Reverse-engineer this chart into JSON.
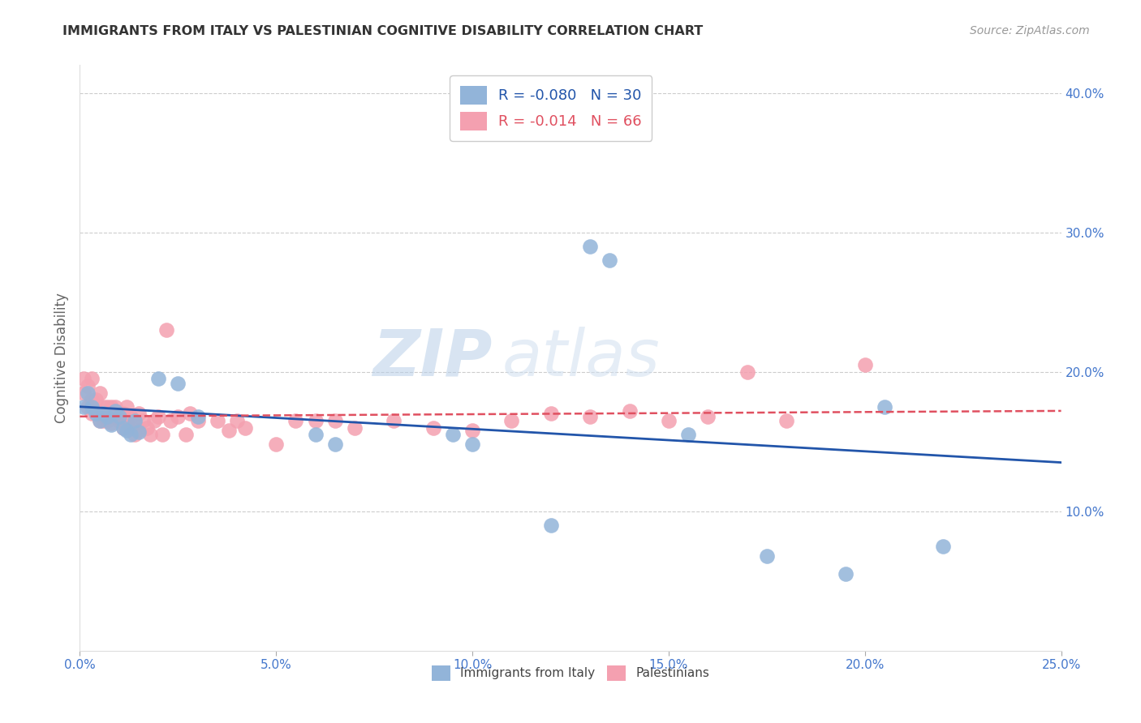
{
  "title": "IMMIGRANTS FROM ITALY VS PALESTINIAN COGNITIVE DISABILITY CORRELATION CHART",
  "source": "Source: ZipAtlas.com",
  "ylabel": "Cognitive Disability",
  "watermark_zip": "ZIP",
  "watermark_atlas": "atlas",
  "xlim": [
    0.0,
    0.25
  ],
  "ylim": [
    0.0,
    0.42
  ],
  "xticks": [
    0.0,
    0.05,
    0.1,
    0.15,
    0.2,
    0.25
  ],
  "yticks_right": [
    0.1,
    0.2,
    0.3,
    0.4
  ],
  "ytick_labels_right": [
    "10.0%",
    "20.0%",
    "30.0%",
    "40.0%"
  ],
  "xtick_labels": [
    "0.0%",
    "5.0%",
    "10.0%",
    "15.0%",
    "20.0%",
    "25.0%"
  ],
  "italy_R": -0.08,
  "italy_N": 30,
  "palestine_R": -0.014,
  "palestine_N": 66,
  "italy_color": "#92b4d9",
  "palestine_color": "#f4a0b0",
  "italy_line_color": "#2255aa",
  "palestine_line_color": "#e05060",
  "background_color": "#ffffff",
  "grid_color": "#cccccc",
  "axis_label_color": "#4477cc",
  "title_color": "#333333",
  "italy_scatter_x": [
    0.001,
    0.002,
    0.003,
    0.004,
    0.005,
    0.006,
    0.007,
    0.008,
    0.009,
    0.01,
    0.011,
    0.012,
    0.013,
    0.014,
    0.015,
    0.02,
    0.025,
    0.03,
    0.06,
    0.065,
    0.095,
    0.1,
    0.12,
    0.13,
    0.135,
    0.155,
    0.175,
    0.195,
    0.205,
    0.22
  ],
  "italy_scatter_y": [
    0.175,
    0.185,
    0.175,
    0.17,
    0.165,
    0.17,
    0.168,
    0.162,
    0.172,
    0.168,
    0.16,
    0.158,
    0.155,
    0.165,
    0.157,
    0.195,
    0.192,
    0.168,
    0.155,
    0.148,
    0.155,
    0.148,
    0.09,
    0.29,
    0.28,
    0.155,
    0.068,
    0.055,
    0.175,
    0.075
  ],
  "palestine_scatter_x": [
    0.001,
    0.001,
    0.002,
    0.002,
    0.003,
    0.003,
    0.003,
    0.004,
    0.004,
    0.005,
    0.005,
    0.005,
    0.006,
    0.006,
    0.007,
    0.007,
    0.007,
    0.008,
    0.008,
    0.009,
    0.009,
    0.01,
    0.01,
    0.011,
    0.011,
    0.012,
    0.012,
    0.013,
    0.013,
    0.014,
    0.014,
    0.015,
    0.015,
    0.016,
    0.017,
    0.018,
    0.019,
    0.02,
    0.021,
    0.022,
    0.023,
    0.025,
    0.027,
    0.028,
    0.03,
    0.035,
    0.038,
    0.04,
    0.042,
    0.05,
    0.055,
    0.06,
    0.065,
    0.07,
    0.08,
    0.09,
    0.1,
    0.11,
    0.12,
    0.13,
    0.14,
    0.15,
    0.16,
    0.17,
    0.18,
    0.2
  ],
  "palestine_scatter_y": [
    0.195,
    0.185,
    0.19,
    0.175,
    0.195,
    0.18,
    0.17,
    0.18,
    0.172,
    0.185,
    0.17,
    0.165,
    0.175,
    0.165,
    0.175,
    0.17,
    0.165,
    0.175,
    0.163,
    0.175,
    0.168,
    0.165,
    0.17,
    0.16,
    0.17,
    0.175,
    0.163,
    0.16,
    0.168,
    0.163,
    0.155,
    0.17,
    0.158,
    0.165,
    0.16,
    0.155,
    0.165,
    0.168,
    0.155,
    0.23,
    0.165,
    0.168,
    0.155,
    0.17,
    0.165,
    0.165,
    0.158,
    0.165,
    0.16,
    0.148,
    0.165,
    0.165,
    0.165,
    0.16,
    0.165,
    0.16,
    0.158,
    0.165,
    0.17,
    0.168,
    0.172,
    0.165,
    0.168,
    0.2,
    0.165,
    0.205
  ],
  "italy_line_x": [
    0.0,
    0.25
  ],
  "italy_line_y": [
    0.175,
    0.135
  ],
  "palestine_line_x": [
    0.0,
    0.25
  ],
  "palestine_line_y": [
    0.168,
    0.172
  ]
}
